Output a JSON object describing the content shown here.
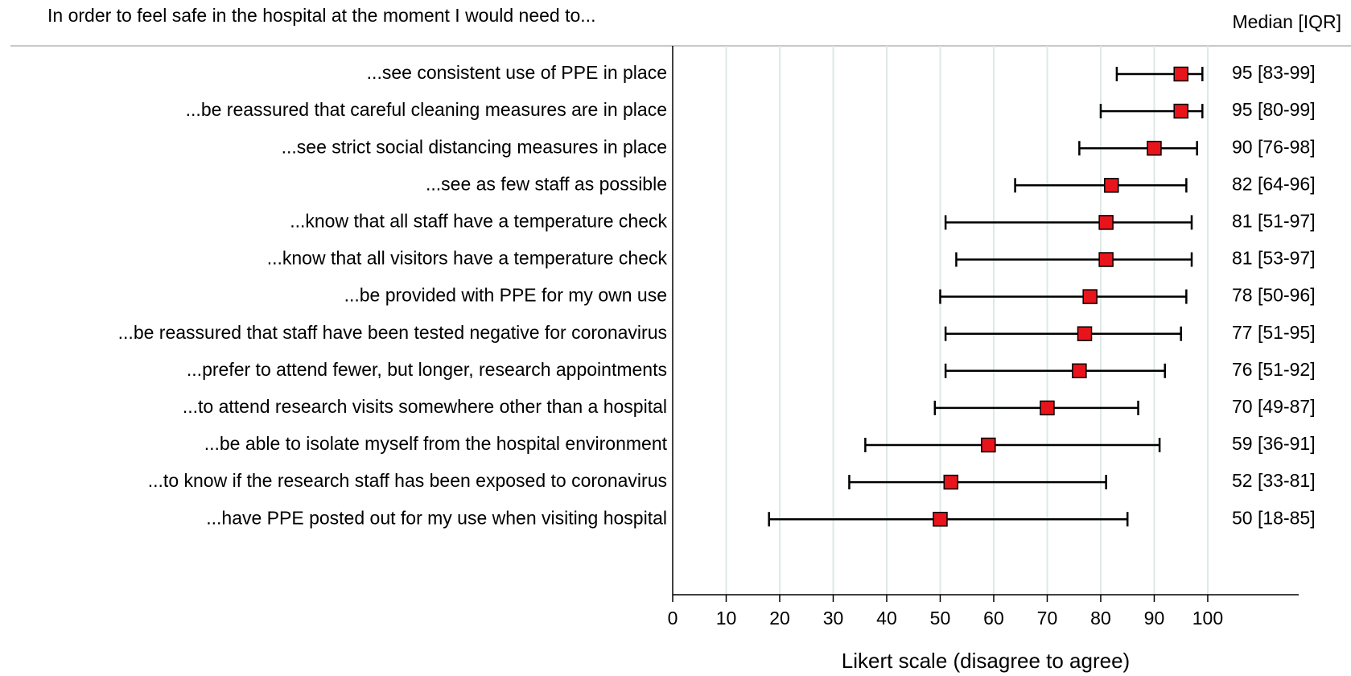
{
  "chart_data": {
    "type": "interval",
    "title": "In order to feel safe in the hospital at the moment I would need to...",
    "value_header": "Median [IQR]",
    "xlabel": "Likert scale (disagree to agree)",
    "categories": [
      "...see consistent use of PPE in place",
      "...be reassured that careful cleaning measures are in place",
      "...see strict social distancing measures in place",
      "...see as few staff as possible",
      "...know that all staff have a temperature check",
      "...know that all visitors have a temperature check",
      "...be provided with PPE for my own use",
      "...be reassured that staff have been tested negative for coronavirus",
      "...prefer to attend fewer, but longer, research appointments",
      "...to attend research visits somewhere other than a hospital",
      "...be able to isolate myself from the hospital environment",
      "...to know if the research staff has been exposed to coronavirus",
      "...have PPE posted out for my use when visiting hospital"
    ],
    "values": [
      95,
      95,
      90,
      82,
      81,
      81,
      78,
      77,
      76,
      70,
      59,
      52,
      50
    ],
    "lower": [
      83,
      80,
      76,
      64,
      51,
      53,
      50,
      51,
      51,
      49,
      36,
      33,
      18
    ],
    "upper": [
      99,
      99,
      98,
      96,
      97,
      97,
      96,
      95,
      92,
      87,
      91,
      81,
      85
    ],
    "value_labels": [
      "95 [83-99]",
      "95 [80-99]",
      "90 [76-98]",
      "82 [64-96]",
      "81 [51-97]",
      "81 [53-97]",
      "78 [50-96]",
      "77 [51-95]",
      "76 [51-92]",
      "70 [49-87]",
      "59 [36-91]",
      "52 [33-81]",
      "50 [18-85]"
    ],
    "color": "#e8141b",
    "xlim": [
      0,
      117
    ],
    "xticks": [
      0,
      10,
      20,
      30,
      40,
      50,
      60,
      70,
      80,
      90,
      100
    ],
    "grid": true
  }
}
